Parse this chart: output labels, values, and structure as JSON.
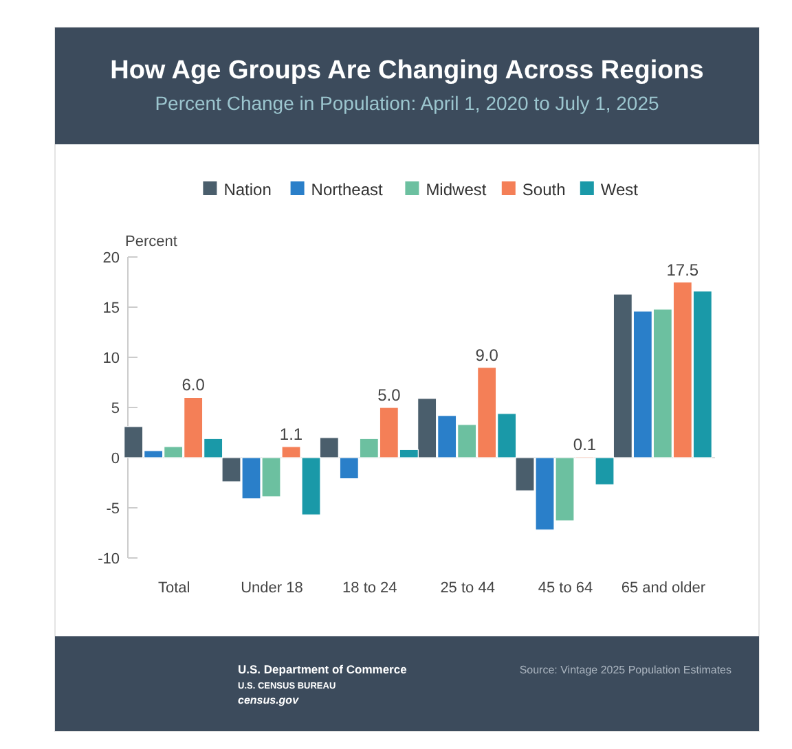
{
  "chart_data": {
    "type": "bar",
    "title": "How Age Groups Are Changing Across Regions",
    "subtitle": "Percent Change in Population: April 1, 2020 to July 1, 2025",
    "ylabel": "Percent",
    "categories": [
      "Total",
      "Under 18",
      "18 to 24",
      "25 to 44",
      "45 to 64",
      "65 and older"
    ],
    "series": [
      {
        "name": "Nation",
        "color": "#4a5e6c",
        "values": [
          3.1,
          -2.4,
          2.0,
          5.9,
          -3.3,
          16.3
        ]
      },
      {
        "name": "Northeast",
        "color": "#2a7fc9",
        "values": [
          0.7,
          -4.1,
          -2.1,
          4.2,
          -7.2,
          14.6
        ]
      },
      {
        "name": "Midwest",
        "color": "#6cc0a0",
        "values": [
          1.1,
          -3.9,
          1.9,
          3.3,
          -6.3,
          14.8
        ]
      },
      {
        "name": "South",
        "color": "#f47f57",
        "values": [
          6.0,
          1.1,
          5.0,
          9.0,
          0.1,
          17.5
        ],
        "value_labels": [
          "6.0",
          "1.1",
          "5.0",
          "9.0",
          "0.1",
          "17.5"
        ]
      },
      {
        "name": "West",
        "color": "#1a99a8",
        "values": [
          1.9,
          -5.7,
          0.8,
          4.4,
          -2.7,
          16.6
        ]
      }
    ],
    "ylim": [
      -10,
      20
    ],
    "yticks": [
      -10,
      -5,
      0,
      5,
      10,
      15,
      20
    ],
    "legend": "top",
    "annotations": [
      "U.S. Department of Commerce",
      "U.S. CENSUS BUREAU",
      "census.gov",
      "Source: Vintage 2025 Population Estimates"
    ]
  }
}
